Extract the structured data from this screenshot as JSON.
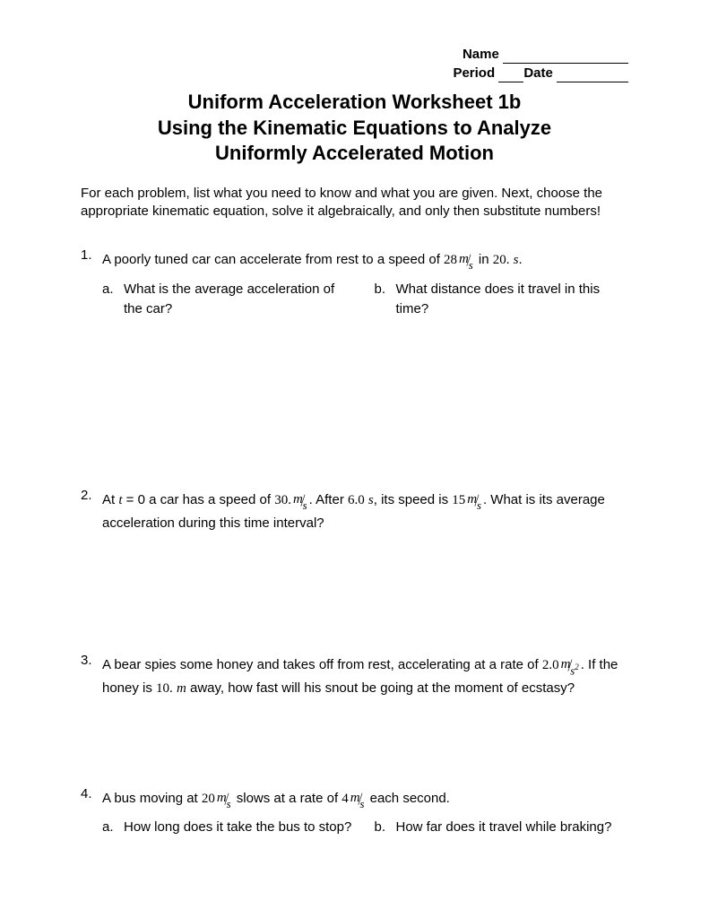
{
  "header": {
    "name_label": "Name",
    "period_label": "Period",
    "date_label": "Date",
    "name_line_width": 140,
    "period_line_width": 28,
    "date_line_width": 80
  },
  "title": {
    "line1": "Uniform Acceleration Worksheet 1b",
    "line2": "Using the Kinematic Equations to Analyze",
    "line3": "Uniformly Accelerated Motion"
  },
  "intro": "For each problem, list what you need to know and what you are given.  Next, choose the appropriate kinematic equation, solve it algebraically, and only then substitute numbers!",
  "p1": {
    "num": "1.",
    "text_a": "A poorly tuned car can accelerate from rest to a speed of ",
    "val1_coef": "28",
    "val1_num": "m",
    "val1_den": "s",
    "text_b": " in ",
    "val2": "20.",
    "val2_unit": "s",
    "text_c": ".",
    "sub_a_label": "a.",
    "sub_a": "What is the average acceleration of the car?",
    "sub_b_label": "b.",
    "sub_b": "What distance does it travel in this time?"
  },
  "p2": {
    "num": "2.",
    "text_a": "At ",
    "var1": "t",
    "text_b": " = 0 a car has a speed of ",
    "val1_coef": "30.",
    "val1_num": "m",
    "val1_den": "s",
    "text_c": ".  After ",
    "val2": "6.0",
    "val2_unit": "s",
    "text_d": ", its speed is ",
    "val3_coef": "15",
    "val3_num": "m",
    "val3_den": "s",
    "text_e": ".  What is its average acceleration during this time interval?"
  },
  "p3": {
    "num": "3.",
    "text_a": "A bear spies some honey and takes off from rest, accelerating at a rate of ",
    "val1_coef": "2.0",
    "val1_num": "m",
    "val1_den": "s",
    "val1_den_sup": "2",
    "text_b": ".  If the honey is ",
    "val2": "10.",
    "val2_unit": "m",
    "text_c": " away, how fast will his snout be going at the moment of ecstasy?"
  },
  "p4": {
    "num": "4.",
    "text_a": "A bus moving at ",
    "val1_coef": "20",
    "val1_num": "m",
    "val1_den": "s",
    "text_b": " slows at a rate of ",
    "val2_coef": "4",
    "val2_num": "m",
    "val2_den": "s",
    "text_c": " each second.",
    "sub_a_label": "a.",
    "sub_a": "How long does it take the bus to stop?",
    "sub_b_label": "b.",
    "sub_b": "How far does it travel while braking?"
  }
}
